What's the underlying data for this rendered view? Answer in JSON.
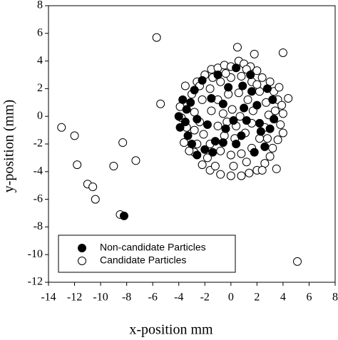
{
  "chart_data": {
    "type": "scatter",
    "xlabel": "x-position mm",
    "ylabel": "y-position (mm)",
    "xlim": [
      -14,
      8
    ],
    "ylim": [
      -12,
      8
    ],
    "xticks": [
      -14,
      -12,
      -10,
      -8,
      -6,
      -4,
      -2,
      0,
      2,
      4,
      6,
      8
    ],
    "yticks": [
      -12,
      -10,
      -8,
      -6,
      -4,
      -2,
      0,
      2,
      4,
      6,
      8
    ],
    "legend": "lower left",
    "series": [
      {
        "name": "Non-candidate Particles",
        "color": "#000000",
        "x": [
          -8.2,
          -4,
          -3.9,
          -3.7,
          -3.4,
          -3.3,
          -3,
          -2.6,
          -2,
          -3.1,
          -2.8,
          -2.2,
          -3.5,
          -1.2,
          -0.6,
          -1.8,
          -1.5,
          -0.6,
          0.2,
          1,
          1.2,
          2,
          2.2,
          1.6,
          2.8,
          2.3,
          3,
          3.3,
          1.8,
          0.4,
          -0.2,
          0.9,
          -1,
          0.4,
          2.6,
          -2.6,
          -1.4,
          3.2,
          -0.4,
          0.8,
          1.5
        ],
        "y": [
          -7.2,
          0,
          -0.8,
          1.2,
          0.5,
          -1.4,
          -2,
          -2.8,
          -2.4,
          1,
          1.9,
          2.6,
          -0.4,
          -1.8,
          -1.9,
          -0.6,
          1.3,
          0.9,
          -0.3,
          0.6,
          -0.3,
          0.8,
          -0.5,
          1.8,
          2,
          -1.1,
          -0.9,
          -0.2,
          -2.6,
          -2,
          2.1,
          2.2,
          3,
          3.5,
          -2.2,
          -0.2,
          -2.6,
          1.2,
          -0.9,
          -1.4,
          3
        ]
      },
      {
        "name": "Candidate Particles",
        "color": "#ffffff",
        "x": [
          -13,
          -12,
          -11.8,
          -11,
          -10.6,
          -10.4,
          -9,
          -8.3,
          -7.3,
          -8.5,
          -5.7,
          -5.4,
          5.1,
          4,
          0.5,
          1.8,
          4.4,
          -3.5,
          -3,
          -2.6,
          -2,
          -1.5,
          -1,
          -0.5,
          0,
          0.6,
          1,
          1.5,
          2,
          2.4,
          3,
          3.3,
          3.6,
          3.9,
          4,
          3.8,
          4,
          3.6,
          3.2,
          3,
          2.6,
          2,
          1.4,
          0.8,
          0,
          -0.8,
          -1.6,
          -2.2,
          -2.8,
          -3.2,
          -3.6,
          -3.4,
          -3.8,
          -3.9,
          -2.8,
          -2.2,
          -1.6,
          -0.8,
          0,
          0.8,
          1.6,
          2.2,
          2.7,
          2.9,
          2.6,
          2.2,
          1.6,
          0.8,
          0,
          -0.8,
          -1.6,
          -2.1,
          -2.4,
          -1.5,
          -1,
          -0.2,
          0.6,
          1.3,
          1.7,
          1.6,
          1.1,
          0.3,
          -0.5,
          -1,
          -0.6,
          0.1,
          0.7,
          0.4,
          -0.3,
          3.5,
          2.4,
          -1.2,
          0.2,
          1.2,
          -2.6,
          3.4,
          2,
          -0.4,
          1.2,
          -1.4,
          -2.8,
          -1.8,
          2.8,
          3.7,
          -2.4
        ],
        "y": [
          -0.8,
          -1.4,
          -3.5,
          -4.9,
          -5.1,
          -6,
          -3.6,
          -1.9,
          -3.2,
          -7.1,
          5.7,
          0.9,
          -10.5,
          4.6,
          5,
          4.5,
          1.3,
          2.2,
          1.6,
          2.5,
          3,
          3.4,
          3.5,
          3.7,
          3.6,
          4,
          3.8,
          3.6,
          3.3,
          2.8,
          2.5,
          1.8,
          1.2,
          0.8,
          0.2,
          -0.6,
          -1.2,
          -1.7,
          -2.3,
          -2.9,
          -3.4,
          -3.9,
          -4.1,
          -4.3,
          -4.3,
          -4.2,
          -3.9,
          -3.5,
          -2.6,
          -2.5,
          -1.9,
          -0.8,
          -0.1,
          0.7,
          0.3,
          1.2,
          2,
          2.5,
          2.8,
          2.9,
          2.5,
          1.8,
          1,
          0.1,
          -0.8,
          -1.6,
          -2.3,
          -2.7,
          -2.8,
          -2.5,
          -2,
          -1.3,
          -0.4,
          0.4,
          1.2,
          1.6,
          1.7,
          1.2,
          0.4,
          -0.5,
          -1.2,
          -1.6,
          -1.4,
          -0.7,
          0.2,
          0.5,
          0,
          -0.7,
          -0.4,
          -3.8,
          -3.9,
          -3.6,
          -3.6,
          -3.3,
          -2,
          0.4,
          2.3,
          3.1,
          3.4,
          2.8,
          -1,
          -3,
          -1.6,
          2.1,
          2.2
        ]
      }
    ]
  }
}
